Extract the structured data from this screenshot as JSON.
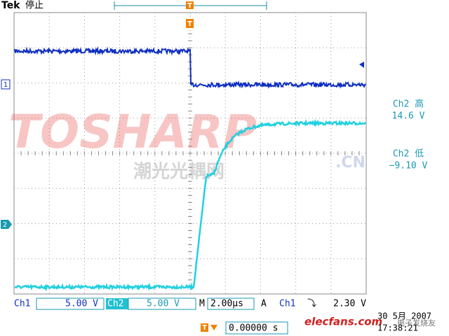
{
  "header": {
    "brand": "Tek",
    "status": "停止"
  },
  "markers": {
    "trigger": "T",
    "ch1": "1",
    "ch2": "2"
  },
  "readouts": [
    {
      "label": "Ch2 高",
      "value": "14.6 V"
    },
    {
      "label": "Ch2 低",
      "value": "−9.10 V"
    }
  ],
  "status_bar": {
    "ch1": "Ch1",
    "ch1_scale": "5.00 V",
    "ch2": "Ch2",
    "ch2_scale": "5.00 V",
    "timebase_label": "M",
    "timebase": "2.00µs",
    "trigger_label": "A",
    "trigger_source": "Ch1",
    "trigger_slope": "⤵",
    "trigger_level": "2.30 V"
  },
  "trigger_position": {
    "marker": "T",
    "value": "0.00000 s"
  },
  "datetime": {
    "date": "30 5月 2007",
    "time": "17:38:21"
  },
  "watermarks": {
    "brand": "TOSHARP",
    "domain": ".CN",
    "chinese": "潮光光耦网",
    "site": "elecfans.com",
    "site_cn": "电子发烧友"
  }
}
